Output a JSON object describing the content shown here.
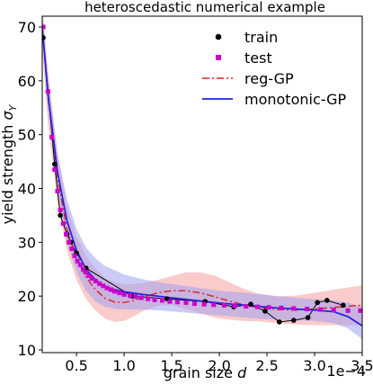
{
  "chart_data": {
    "type": "line",
    "title": "heteroscedastic numerical example",
    "xlabel_prefix": "grain size ",
    "xlabel_var": "d",
    "ylabel_prefix": "yield strength ",
    "ylabel_var": "σ",
    "ylabel_sub": "Y",
    "x_offset_label": "1e−4",
    "xlim": [
      0.14,
      3.5
    ],
    "ylim": [
      9.5,
      72
    ],
    "xticks": [
      0.5,
      1.0,
      1.5,
      2.0,
      2.5,
      3.0,
      3.5
    ],
    "xtick_labels": [
      "0.5",
      "1.0",
      "1.5",
      "2.0",
      "2.5",
      "3.0",
      "3.5"
    ],
    "yticks": [
      10,
      20,
      30,
      40,
      50,
      60,
      70
    ],
    "ytick_labels": [
      "10",
      "20",
      "30",
      "40",
      "50",
      "60",
      "70"
    ],
    "legend_position": "top-right",
    "series": [
      {
        "name": "train",
        "kind": "line-markers",
        "color": "#000000",
        "x": [
          0.15,
          0.27,
          0.33,
          0.4,
          0.44,
          0.5,
          0.6,
          1.08,
          1.45,
          1.85,
          2.15,
          2.33,
          2.48,
          2.63,
          2.78,
          2.93,
          3.03,
          3.13,
          3.3
        ],
        "y": [
          68.0,
          44.5,
          35.0,
          31.5,
          30.0,
          28.0,
          25.2,
          20.0,
          19.5,
          19.0,
          18.0,
          18.5,
          17.2,
          15.2,
          15.5,
          16.0,
          18.8,
          19.2,
          18.3
        ]
      },
      {
        "name": "test",
        "kind": "markers",
        "color": "#cc00cc",
        "x": [
          0.15,
          0.2,
          0.24,
          0.27,
          0.3,
          0.33,
          0.36,
          0.39,
          0.42,
          0.45,
          0.48,
          0.51,
          0.54,
          0.57,
          0.6,
          0.63,
          0.66,
          0.7,
          0.74,
          0.78,
          0.82,
          0.86,
          0.9,
          0.95,
          1.0,
          1.06,
          1.12,
          1.18,
          1.25,
          1.32,
          1.4,
          1.48,
          1.56,
          1.65,
          1.74,
          1.84,
          1.94,
          2.05,
          2.16,
          2.28,
          2.4,
          2.52,
          2.65,
          2.78,
          2.92,
          3.06,
          3.2,
          3.35,
          3.48
        ],
        "y": [
          70.0,
          58.0,
          49.5,
          43.5,
          39.5,
          36.0,
          33.5,
          31.5,
          30.0,
          28.8,
          27.5,
          26.5,
          25.8,
          25.0,
          24.4,
          23.8,
          23.3,
          22.8,
          22.3,
          21.9,
          21.5,
          21.2,
          20.9,
          20.6,
          20.3,
          20.1,
          19.9,
          19.7,
          19.5,
          19.3,
          19.2,
          19.0,
          18.9,
          18.8,
          18.6,
          18.5,
          18.4,
          18.3,
          18.2,
          18.1,
          18.0,
          17.9,
          17.8,
          17.7,
          17.6,
          17.5,
          17.4,
          17.3,
          17.3
        ]
      },
      {
        "name": "reg-GP",
        "kind": "dashdot",
        "color": "#dd2222",
        "band_color": "#f5a0a0",
        "x": [
          0.14,
          0.2,
          0.3,
          0.4,
          0.5,
          0.6,
          0.7,
          0.8,
          0.9,
          1.0,
          1.1,
          1.2,
          1.35,
          1.5,
          1.65,
          1.8,
          1.95,
          2.1,
          2.25,
          2.4,
          2.6,
          2.8,
          3.0,
          3.2,
          3.35,
          3.5
        ],
        "y": [
          70.0,
          57.0,
          42.0,
          32.5,
          27.0,
          23.5,
          21.2,
          19.6,
          18.9,
          18.8,
          19.2,
          19.8,
          20.6,
          21.0,
          21.0,
          20.6,
          19.9,
          19.1,
          18.4,
          17.9,
          17.5,
          17.4,
          17.6,
          17.9,
          18.1,
          18.3
        ],
        "lower": [
          66.0,
          52.0,
          37.5,
          28.5,
          23.0,
          19.5,
          17.3,
          15.8,
          15.2,
          15.4,
          16.2,
          17.2,
          18.2,
          18.3,
          17.6,
          16.8,
          16.0,
          15.6,
          15.4,
          15.3,
          15.0,
          14.7,
          14.6,
          14.6,
          14.6,
          14.6
        ],
        "upper": [
          74.0,
          62.0,
          46.5,
          36.5,
          31.0,
          27.5,
          25.1,
          23.4,
          22.6,
          22.2,
          22.2,
          22.4,
          23.0,
          23.7,
          24.4,
          24.4,
          23.8,
          22.6,
          21.4,
          20.5,
          20.0,
          20.1,
          20.6,
          21.2,
          21.6,
          22.0
        ]
      },
      {
        "name": "monotonic-GP",
        "kind": "solid",
        "color": "#2222dd",
        "band_color": "#a0a0f0",
        "x": [
          0.14,
          0.2,
          0.3,
          0.4,
          0.5,
          0.6,
          0.7,
          0.8,
          0.9,
          1.0,
          1.2,
          1.4,
          1.6,
          1.8,
          2.0,
          2.2,
          2.4,
          2.6,
          2.8,
          3.0,
          3.2,
          3.35,
          3.5
        ],
        "y": [
          70.0,
          57.5,
          43.0,
          34.0,
          28.5,
          25.0,
          23.0,
          21.8,
          21.2,
          20.8,
          20.3,
          19.9,
          19.5,
          19.1,
          18.7,
          18.4,
          18.1,
          17.8,
          17.6,
          17.4,
          17.1,
          16.2,
          14.5
        ],
        "lower": [
          68.0,
          54.5,
          39.5,
          30.0,
          24.5,
          21.0,
          19.0,
          18.0,
          17.6,
          17.5,
          17.5,
          17.3,
          17.0,
          16.7,
          16.4,
          16.1,
          15.8,
          15.6,
          15.5,
          15.4,
          15.0,
          14.0,
          12.0
        ],
        "upper": [
          72.0,
          60.5,
          46.5,
          38.0,
          32.5,
          29.0,
          27.0,
          25.6,
          24.8,
          24.0,
          23.1,
          22.5,
          22.0,
          21.5,
          21.0,
          20.7,
          20.4,
          20.0,
          19.7,
          19.4,
          19.2,
          18.8,
          18.0
        ]
      }
    ]
  }
}
